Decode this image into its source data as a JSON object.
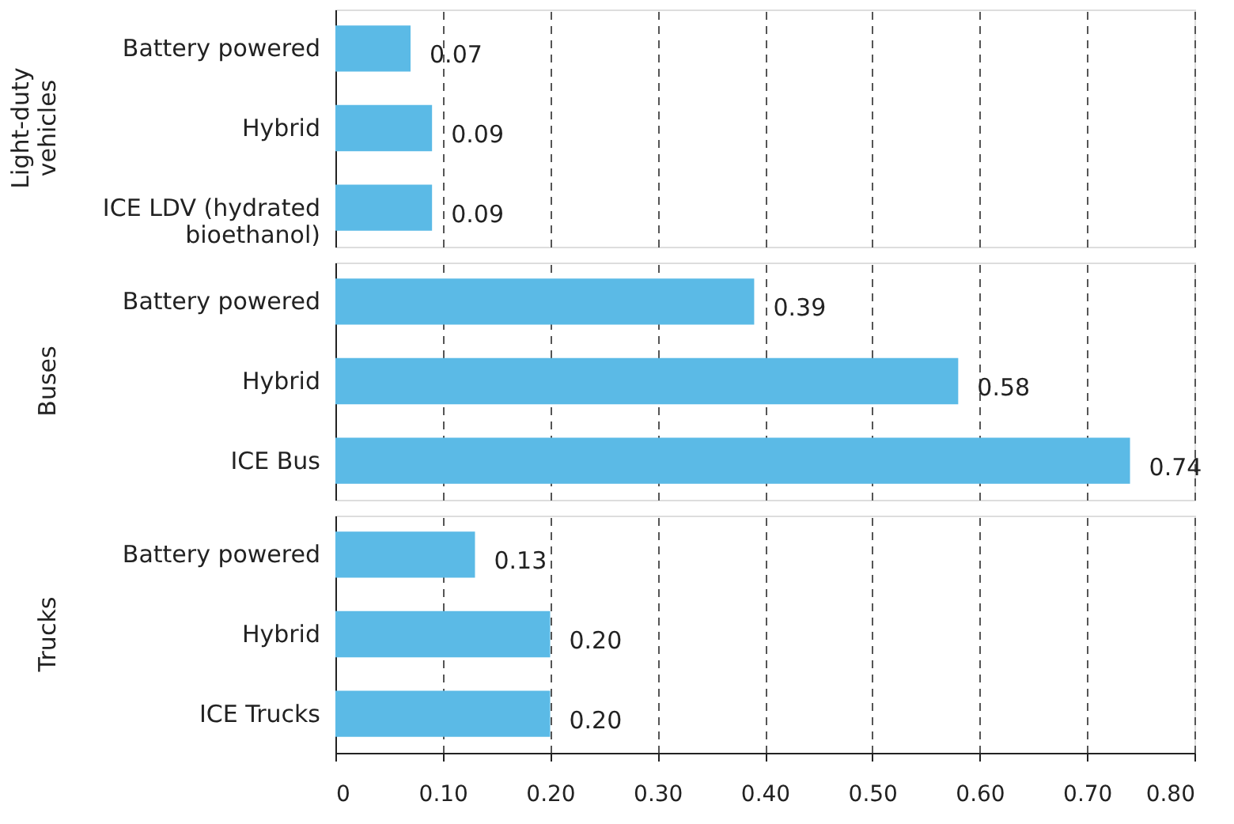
{
  "chart_data": [
    {
      "type": "bar",
      "orientation": "horizontal",
      "title": "Light-duty vehicles",
      "categories": [
        "Battery powered",
        "Hybrid",
        "ICE LDV (hydrated bioethanol)"
      ],
      "values": [
        0.07,
        0.09,
        0.09
      ],
      "value_labels": [
        "0.07",
        "0.09",
        "0.09"
      ],
      "color": "#5bbae6",
      "xlim": [
        0,
        0.8
      ],
      "grid": "x",
      "tick_labels": "y"
    },
    {
      "type": "bar",
      "orientation": "horizontal",
      "title": "Buses",
      "categories": [
        "Battery powered",
        "Hybrid",
        "ICE Bus"
      ],
      "values": [
        0.39,
        0.58,
        0.74
      ],
      "value_labels": [
        "0.39",
        "0.58",
        "0.74"
      ],
      "color": "#5bbae6",
      "xlim": [
        0,
        0.8
      ],
      "grid": "x",
      "tick_labels": "y"
    },
    {
      "type": "bar",
      "orientation": "horizontal",
      "title": "Trucks",
      "categories": [
        "Battery powered",
        "Hybrid",
        "ICE Trucks"
      ],
      "values": [
        0.13,
        0.2,
        0.2
      ],
      "value_labels": [
        "0.13",
        "0.20",
        "0.20"
      ],
      "color": "#5bbae6",
      "xlim": [
        0,
        0.8
      ],
      "xticks": [
        0,
        {
          "value": 0.1,
          "label": "0.10"
        },
        {
          "value": 0.2,
          "label": "0.20"
        },
        {
          "value": 0.3,
          "label": "0.30"
        },
        {
          "value": 0.4,
          "label": "0.40"
        },
        {
          "value": 0.5,
          "label": "0.50"
        },
        {
          "value": 0.6,
          "label": "0.60"
        },
        {
          "value": 0.7,
          "label": "0.70"
        },
        {
          "value": 0.8,
          "label": "0.80"
        }
      ],
      "grid": "x"
    }
  ]
}
